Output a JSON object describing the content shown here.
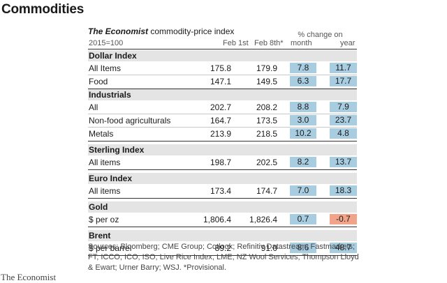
{
  "page_title": "Commodities",
  "table": {
    "title_italic": "The Economist",
    "title_rest": " commodity-price index",
    "pct_caption": "% change on",
    "columns": {
      "base": "2015=100",
      "c1": "Feb 1st",
      "c2": "Feb 8th*",
      "c3": "month",
      "c4": "year"
    },
    "sections": [
      {
        "name": "Dollar Index",
        "rows": [
          {
            "label": "All Items",
            "v1": "175.8",
            "v2": "179.9",
            "month": "7.8",
            "year": "11.7"
          },
          {
            "label": "Food",
            "v1": "147.1",
            "v2": "149.5",
            "month": "6.3",
            "year": "17.7"
          }
        ]
      },
      {
        "name": "Industrials",
        "rows": [
          {
            "label": "All",
            "v1": "202.7",
            "v2": "208.2",
            "month": "8.8",
            "year": "7.9"
          },
          {
            "label": "Non-food agriculturals",
            "v1": "164.7",
            "v2": "173.5",
            "month": "3.0",
            "year": "23.7"
          },
          {
            "label": "Metals",
            "v1": "213.9",
            "v2": "218.5",
            "month": "10.2",
            "year": "4.8"
          }
        ]
      },
      {
        "name": "Sterling Index",
        "rows": [
          {
            "label": "All items",
            "v1": "198.7",
            "v2": "202.5",
            "month": "8.2",
            "year": "13.7"
          }
        ]
      },
      {
        "name": "Euro Index",
        "rows": [
          {
            "label": "All items",
            "v1": "173.4",
            "v2": "174.7",
            "month": "7.0",
            "year": "18.3"
          }
        ]
      },
      {
        "name": "Gold",
        "rows": [
          {
            "label": "$ per oz",
            "v1": "1,806.4",
            "v2": "1,826.4",
            "month": "0.7",
            "year": "-0.7"
          }
        ]
      },
      {
        "name": "Brent",
        "rows": [
          {
            "label": "$ per barrel",
            "v1": "89.2",
            "v2": "91.0",
            "month": "8.6",
            "year": "48.7"
          }
        ]
      }
    ]
  },
  "sources": "Sources: Bloomberg; CME Group; Cotlook; Refinitiv Datastream; Fastmarkets; FT; ICCO; ICO; ISO; Live Rice Index; LME; NZ Wool Services; Thompson Lloyd & Ewart; Urner Barry; WSJ. *Provisional.",
  "brand": "The Economist",
  "colors": {
    "positive_cell": "#a9cde0",
    "negative_cell": "#f2a48b",
    "section_band": "#e4e4e4"
  }
}
